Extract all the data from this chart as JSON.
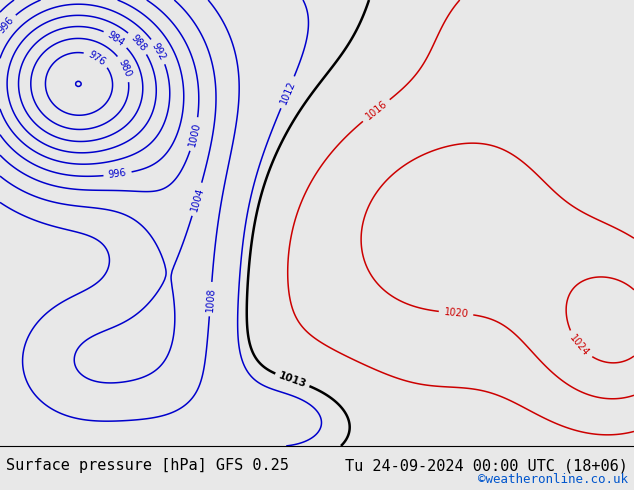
{
  "title_left": "Surface pressure [hPa] GFS 0.25",
  "title_right": "Tu 24-09-2024 00:00 UTC (18+06)",
  "credit": "©weatheronline.co.uk",
  "land_color": "#aad4a0",
  "font_size_title": 11,
  "font_size_credit": 9,
  "contour_color_low": "#0000cc",
  "contour_color_high": "#cc0000",
  "contour_color_1013": "#000000"
}
